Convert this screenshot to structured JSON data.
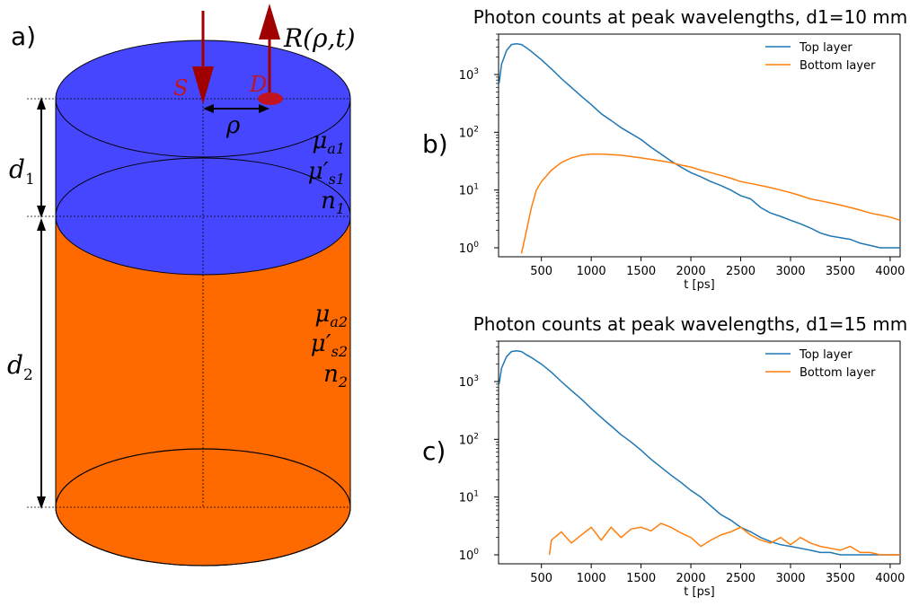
{
  "figure": {
    "panel_a": {
      "label": "a)",
      "source_label": "S",
      "detector_label": "D",
      "reflectance_label": "R(ρ,t)",
      "distance_label": "ρ",
      "thickness_labels": [
        "d",
        "d"
      ],
      "thickness_subscripts": [
        "1",
        "2"
      ],
      "layer1_params": [
        "μa1",
        "μ′s1",
        "n1"
      ],
      "layer2_params": [
        "μa2",
        "μ′s2",
        "n2"
      ],
      "colors": {
        "top_layer": "#4646ff",
        "bottom_layer": "#ff6a00",
        "arrow": "#a00000"
      }
    },
    "panel_b": {
      "label": "b)"
    },
    "panel_c": {
      "label": "c)"
    }
  },
  "chart_data": [
    {
      "type": "line",
      "title": "Photon counts at peak wavelengths, d1=10 mm",
      "xlabel": "t [ps]",
      "ylabel": "",
      "y_scale": "log",
      "xlim": [
        70,
        4100
      ],
      "ylim": [
        0.7,
        5000
      ],
      "xticks": [
        "500",
        "1000",
        "1500",
        "2000",
        "2500",
        "3000",
        "3500",
        "4000"
      ],
      "yticks": [
        "10",
        "10",
        "10",
        "10"
      ],
      "ytick_exponents": [
        "0",
        "1",
        "2",
        "3"
      ],
      "legend": "top-right",
      "series": [
        {
          "name": "Top layer",
          "color": "#1f77b4",
          "x": [
            75,
            100,
            150,
            200,
            250,
            300,
            350,
            400,
            500,
            600,
            700,
            800,
            900,
            1000,
            1100,
            1200,
            1300,
            1400,
            1500,
            1600,
            1700,
            1800,
            1900,
            2000,
            2100,
            2200,
            2300,
            2400,
            2500,
            2600,
            2700,
            2800,
            2900,
            3000,
            3100,
            3200,
            3300,
            3400,
            3500,
            3600,
            3700,
            3800,
            3900,
            4000,
            4100
          ],
          "values": [
            700,
            1500,
            2600,
            3300,
            3400,
            3300,
            2900,
            2500,
            1800,
            1250,
            850,
            600,
            420,
            300,
            210,
            160,
            120,
            95,
            75,
            55,
            42,
            32,
            25,
            20,
            17,
            14,
            12,
            10,
            8,
            7,
            5,
            4,
            3.5,
            3,
            2.6,
            2.2,
            1.8,
            1.6,
            1.5,
            1.4,
            1.2,
            1.1,
            1,
            1,
            1
          ]
        },
        {
          "name": "Bottom layer",
          "color": "#ff7f0e",
          "x": [
            300,
            350,
            400,
            450,
            500,
            600,
            700,
            800,
            900,
            1000,
            1100,
            1200,
            1300,
            1400,
            1500,
            1600,
            1700,
            1800,
            1900,
            2000,
            2100,
            2200,
            2300,
            2400,
            2500,
            2600,
            2700,
            2800,
            2900,
            3000,
            3100,
            3200,
            3300,
            3400,
            3500,
            3600,
            3700,
            3800,
            3900,
            4000,
            4100
          ],
          "values": [
            0.8,
            2,
            5,
            10,
            14,
            22,
            30,
            36,
            40,
            42,
            42,
            41,
            40,
            38,
            36,
            34,
            32,
            30,
            27,
            25,
            22,
            20,
            18,
            16,
            14,
            13,
            12,
            11,
            10,
            9,
            8,
            7,
            6.5,
            6,
            5.5,
            5,
            4.5,
            4,
            3.7,
            3.4,
            3
          ]
        }
      ]
    },
    {
      "type": "line",
      "title": "Photon counts at peak wavelengths, d1=15 mm",
      "xlabel": "t [ps]",
      "ylabel": "",
      "y_scale": "log",
      "xlim": [
        70,
        4100
      ],
      "ylim": [
        0.7,
        5000
      ],
      "xticks": [
        "500",
        "1000",
        "1500",
        "2000",
        "2500",
        "3000",
        "3500",
        "4000"
      ],
      "yticks": [
        "10",
        "10",
        "10",
        "10"
      ],
      "ytick_exponents": [
        "0",
        "1",
        "2",
        "3"
      ],
      "legend": "top-right",
      "series": [
        {
          "name": "Top layer",
          "color": "#1f77b4",
          "x": [
            75,
            100,
            150,
            200,
            250,
            300,
            350,
            400,
            500,
            600,
            700,
            800,
            900,
            1000,
            1100,
            1200,
            1300,
            1400,
            1500,
            1600,
            1700,
            1800,
            1900,
            2000,
            2100,
            2200,
            2300,
            2400,
            2500,
            2600,
            2700,
            2800,
            2900,
            3000,
            3100,
            3200,
            3300,
            3400,
            3500,
            3600,
            3700,
            3800,
            3900,
            4000,
            4100
          ],
          "values": [
            900,
            1700,
            2700,
            3300,
            3400,
            3300,
            2900,
            2600,
            2000,
            1450,
            1000,
            700,
            500,
            340,
            240,
            170,
            120,
            90,
            65,
            45,
            33,
            24,
            18,
            13,
            10,
            7,
            5,
            4,
            3,
            2.5,
            2,
            1.7,
            1.5,
            1.4,
            1.3,
            1.2,
            1.1,
            1.1,
            1,
            1,
            1,
            1,
            1,
            1,
            1
          ]
        },
        {
          "name": "Bottom layer",
          "color": "#ff7f0e",
          "x": [
            580,
            600,
            700,
            800,
            900,
            1000,
            1100,
            1200,
            1300,
            1400,
            1500,
            1600,
            1700,
            1800,
            1900,
            2000,
            2100,
            2200,
            2300,
            2400,
            2500,
            2600,
            2700,
            2800,
            2900,
            3000,
            3100,
            3200,
            3300,
            3400,
            3500,
            3600,
            3700,
            3800,
            3900,
            4000,
            4100
          ],
          "values": [
            1,
            1.8,
            2.5,
            1.6,
            2.2,
            3,
            1.8,
            3,
            2,
            2.8,
            3,
            2.6,
            3.5,
            3,
            2.4,
            2,
            1.4,
            1.8,
            2.2,
            2.5,
            3,
            2.2,
            1.8,
            1.6,
            2,
            1.5,
            2,
            1.6,
            1.4,
            1.3,
            1.2,
            1.4,
            1.1,
            1.1,
            1,
            1,
            1
          ]
        }
      ]
    }
  ]
}
